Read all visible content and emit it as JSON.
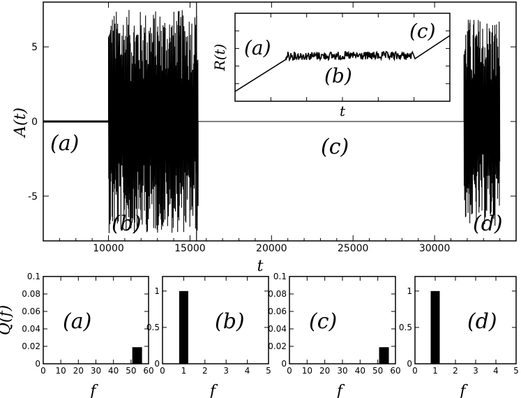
{
  "chart_data": [
    {
      "type": "line",
      "xlabel": "t",
      "ylabel": "A(t)",
      "xlim": [
        6000,
        35000
      ],
      "ylim": [
        -8,
        8
      ],
      "x_ticks": [
        "10000",
        "15000",
        "20000",
        "25000",
        "30000"
      ],
      "y_ticks": [
        "5",
        "0",
        "-5"
      ],
      "annotations": [
        "(a)",
        "(b)",
        "(c)",
        "(d)"
      ],
      "segments": [
        {
          "label": "(a)",
          "x_start": 6000,
          "x_end": 10000,
          "amplitude": 0.1
        },
        {
          "label": "(b)",
          "x_start": 10000,
          "x_end": 15500,
          "amplitude": 7.5
        },
        {
          "label": "(c)",
          "x_start": 15500,
          "x_end": 31800,
          "amplitude": 0
        },
        {
          "label": "(d)",
          "x_start": 31800,
          "x_end": 34000,
          "amplitude": 7.0
        }
      ]
    },
    {
      "type": "line",
      "xlabel": "t",
      "ylabel": "R(t)",
      "annotations": [
        "(a)",
        "(b)",
        "(c)"
      ]
    },
    {
      "type": "bar",
      "ylabel": "Q(f)",
      "xlabel": "f",
      "xlim": [
        0,
        60
      ],
      "ylim": [
        0,
        0.1
      ],
      "x_ticks": [
        "0",
        "10",
        "20",
        "30",
        "40",
        "50",
        "60"
      ],
      "y_ticks": [
        "0",
        "0.02",
        "0.04",
        "0.06",
        "0.08",
        "0.1"
      ],
      "bars": [
        {
          "x": 53.5,
          "value": 0.019
        }
      ],
      "annotation": "(a)"
    },
    {
      "type": "bar",
      "xlabel": "f",
      "xlim": [
        0,
        5
      ],
      "ylim": [
        0,
        1.2
      ],
      "x_ticks": [
        "0",
        "1",
        "2",
        "3",
        "4",
        "5"
      ],
      "y_ticks": [
        "0",
        "0.5",
        "1"
      ],
      "bars": [
        {
          "x": 1,
          "value": 1.0
        }
      ],
      "annotation": "(b)"
    },
    {
      "type": "bar",
      "xlabel": "f",
      "xlim": [
        0,
        60
      ],
      "ylim": [
        0,
        0.1
      ],
      "x_ticks": [
        "0",
        "10",
        "20",
        "30",
        "40",
        "50",
        "60"
      ],
      "y_ticks": [
        "0",
        "0.02",
        "0.04",
        "0.06",
        "0.08",
        "0.1"
      ],
      "bars": [
        {
          "x": 53.5,
          "value": 0.019
        }
      ],
      "annotation": "(c)"
    },
    {
      "type": "bar",
      "xlabel": "f",
      "xlim": [
        0,
        5
      ],
      "ylim": [
        0,
        1.2
      ],
      "x_ticks": [
        "0",
        "1",
        "2",
        "3",
        "4",
        "5"
      ],
      "y_ticks": [
        "0",
        "0.5",
        "1"
      ],
      "bars": [
        {
          "x": 1,
          "value": 1.0
        }
      ],
      "annotation": "(d)"
    }
  ]
}
